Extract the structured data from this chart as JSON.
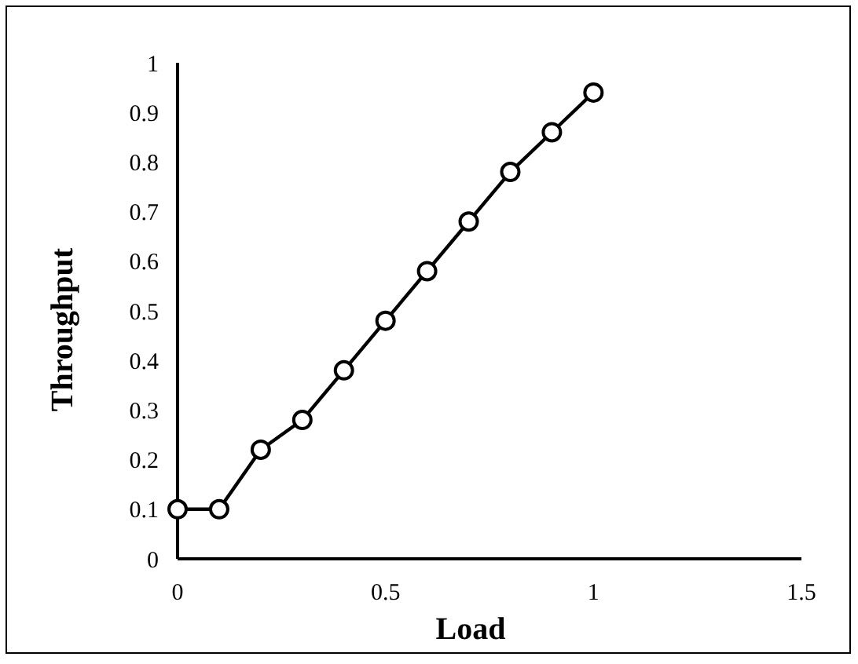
{
  "chart_data": {
    "type": "line",
    "xlabel": "Load",
    "ylabel": "Throughput",
    "x": [
      0,
      0.1,
      0.2,
      0.3,
      0.4,
      0.5,
      0.6,
      0.7,
      0.8,
      0.9,
      1
    ],
    "series": [
      {
        "color": "#000000",
        "values": [
          0.1,
          0.1,
          0.22,
          0.28,
          0.38,
          0.48,
          0.58,
          0.68,
          0.78,
          0.86,
          0.94
        ]
      }
    ],
    "xlim": [
      0,
      1.5
    ],
    "xticks": [
      0,
      0.5,
      1,
      1.5
    ],
    "ylim": [
      0,
      1
    ],
    "yticks": [
      0,
      0.1,
      0.2,
      0.3,
      0.4,
      0.5,
      0.6,
      0.7,
      0.8,
      0.9,
      1
    ],
    "marker": "circle",
    "line_style": "solid"
  }
}
